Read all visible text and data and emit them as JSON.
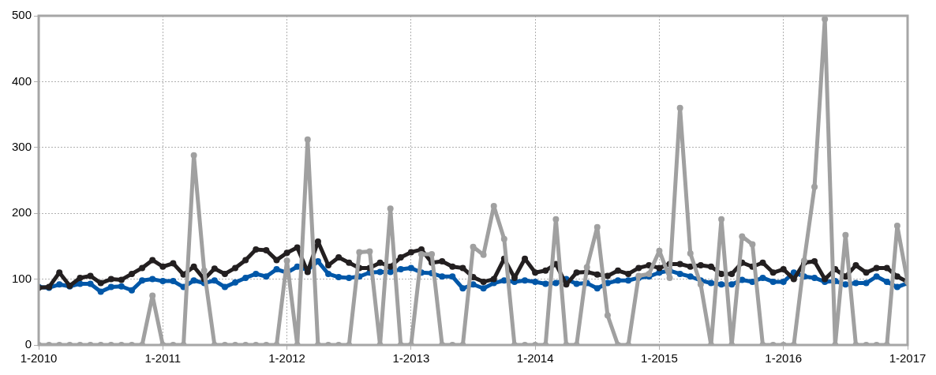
{
  "chart_data": {
    "type": "line",
    "x": [
      "2010-01",
      "2010-02",
      "2010-03",
      "2010-04",
      "2010-05",
      "2010-06",
      "2010-07",
      "2010-08",
      "2010-09",
      "2010-10",
      "2010-11",
      "2010-12",
      "2011-01",
      "2011-02",
      "2011-03",
      "2011-04",
      "2011-05",
      "2011-06",
      "2011-07",
      "2011-08",
      "2011-09",
      "2011-10",
      "2011-11",
      "2011-12",
      "2012-01",
      "2012-02",
      "2012-03",
      "2012-04",
      "2012-05",
      "2012-06",
      "2012-07",
      "2012-08",
      "2012-09",
      "2012-10",
      "2012-11",
      "2012-12",
      "2013-01",
      "2013-02",
      "2013-03",
      "2013-04",
      "2013-05",
      "2013-06",
      "2013-07",
      "2013-08",
      "2013-09",
      "2013-10",
      "2013-11",
      "2013-12",
      "2014-01",
      "2014-02",
      "2014-03",
      "2014-04",
      "2014-05",
      "2014-06",
      "2014-07",
      "2014-08",
      "2014-09",
      "2014-10",
      "2014-11",
      "2014-12",
      "2015-01",
      "2015-02",
      "2015-03",
      "2015-04",
      "2015-05",
      "2015-06",
      "2015-07",
      "2015-08",
      "2015-09",
      "2015-10",
      "2015-11",
      "2015-12",
      "2016-01",
      "2016-02",
      "2016-03",
      "2016-04",
      "2016-05",
      "2016-06",
      "2016-07",
      "2016-08",
      "2016-09",
      "2016-10",
      "2016-11",
      "2016-12",
      "2017-01"
    ],
    "series": [
      {
        "color": "#0057a8",
        "values": [
          88,
          87,
          92,
          89,
          93,
          93,
          81,
          88,
          89,
          83,
          98,
          100,
          97,
          97,
          88,
          98,
          94,
          98,
          88,
          95,
          102,
          108,
          104,
          115,
          110,
          119,
          114,
          127,
          108,
          103,
          102,
          104,
          110,
          111,
          111,
          115,
          117,
          110,
          109,
          104,
          104,
          86,
          92,
          86,
          94,
          98,
          96,
          98,
          96,
          93,
          94,
          100,
          93,
          94,
          86,
          94,
          98,
          98,
          102,
          104,
          110,
          113,
          108,
          104,
          98,
          94,
          92,
          92,
          99,
          96,
          102,
          96,
          96,
          110,
          104,
          102,
          96,
          97,
          92,
          94,
          94,
          104,
          96,
          88,
          94
        ]
      },
      {
        "color": "#231f20",
        "values": [
          87,
          88,
          110,
          90,
          102,
          105,
          94,
          100,
          99,
          108,
          117,
          129,
          119,
          124,
          107,
          119,
          100,
          116,
          108,
          117,
          129,
          145,
          144,
          129,
          140,
          148,
          111,
          157,
          121,
          133,
          125,
          117,
          117,
          125,
          119,
          133,
          141,
          145,
          125,
          127,
          119,
          117,
          103,
          96,
          100,
          131,
          102,
          131,
          110,
          113,
          123,
          92,
          110,
          111,
          107,
          105,
          113,
          108,
          117,
          121,
          117,
          123,
          123,
          119,
          121,
          119,
          108,
          108,
          125,
          119,
          125,
          110,
          115,
          100,
          125,
          127,
          100,
          115,
          104,
          121,
          110,
          117,
          117,
          104,
          96
        ]
      },
      {
        "color": "#a0a0a0",
        "values": [
          0,
          0,
          0,
          0,
          0,
          0,
          0,
          0,
          0,
          0,
          0,
          75,
          0,
          0,
          0,
          288,
          113,
          0,
          0,
          0,
          0,
          0,
          0,
          0,
          128,
          0,
          312,
          0,
          0,
          0,
          0,
          141,
          142,
          0,
          207,
          0,
          0,
          138,
          138,
          0,
          0,
          0,
          149,
          137,
          211,
          161,
          0,
          0,
          0,
          0,
          191,
          0,
          0,
          118,
          179,
          45,
          0,
          0,
          105,
          108,
          143,
          102,
          360,
          139,
          92,
          0,
          191,
          0,
          165,
          153,
          0,
          0,
          0,
          0,
          128,
          240,
          495,
          0,
          167,
          0,
          0,
          0,
          0,
          181,
          96
        ]
      }
    ],
    "xlim": [
      "2010-01",
      "2017-01"
    ],
    "xticks": [
      {
        "value": "2010-01",
        "label": "1-2010"
      },
      {
        "value": "2011-01",
        "label": "1-2011"
      },
      {
        "value": "2012-01",
        "label": "1-2012"
      },
      {
        "value": "2013-01",
        "label": "1-2013"
      },
      {
        "value": "2014-01",
        "label": "1-2014"
      },
      {
        "value": "2015-01",
        "label": "1-2015"
      },
      {
        "value": "2016-01",
        "label": "1-2016"
      },
      {
        "value": "2017-01",
        "label": "1-2017"
      }
    ],
    "ylim": [
      0,
      500
    ],
    "yticks": [
      0,
      100,
      200,
      300,
      400,
      500
    ],
    "grid": true,
    "legend": false,
    "marker": "circle",
    "line_style": "solid"
  }
}
